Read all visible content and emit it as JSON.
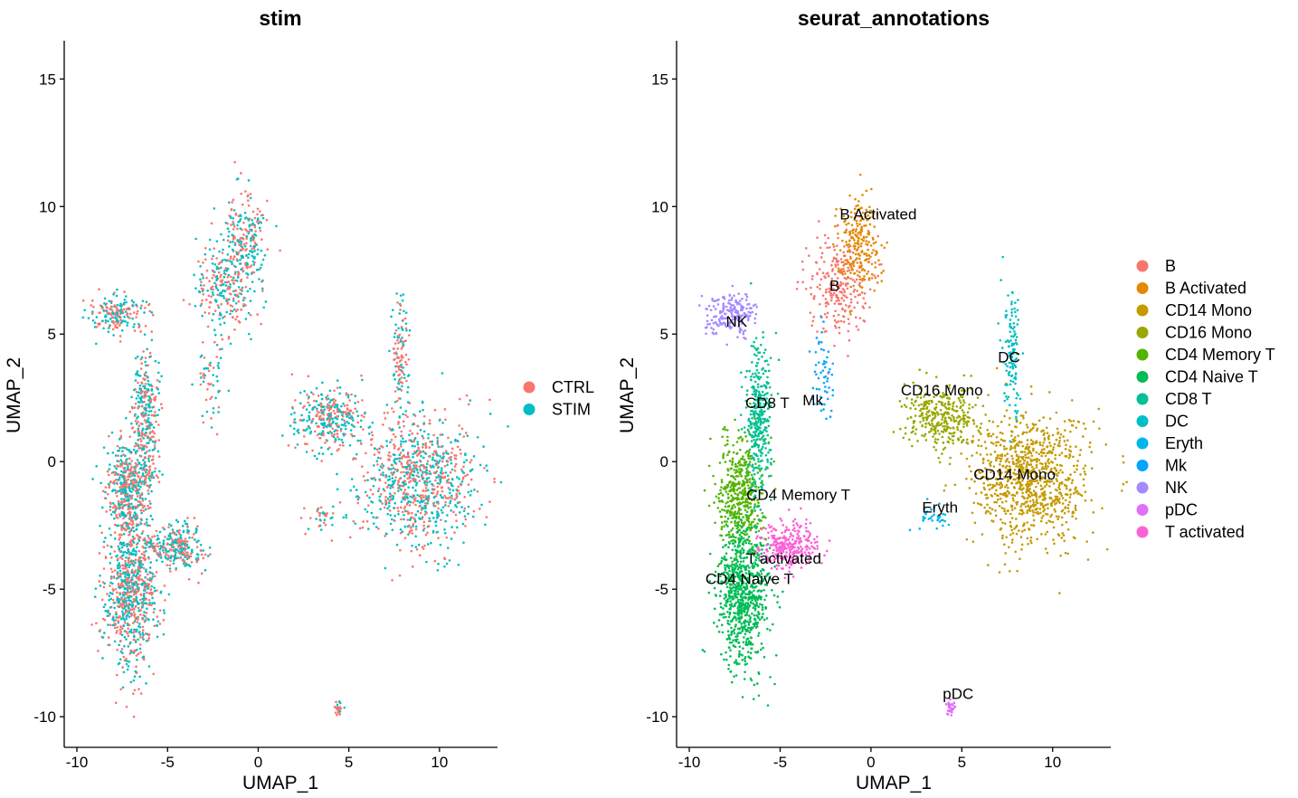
{
  "chart_data": [
    {
      "type": "scatter",
      "title": "stim",
      "xlabel": "UMAP_1",
      "ylabel": "UMAP_2",
      "xlim": [
        -10.7,
        13.2
      ],
      "ylim": [
        -11.2,
        16.5
      ],
      "xticks": [
        -10,
        -5,
        0,
        5,
        10
      ],
      "xtick_labels": [
        "-10",
        "-5",
        "0",
        "5",
        "10"
      ],
      "yticks": [
        -10,
        -5,
        0,
        5,
        10,
        15
      ],
      "ytick_labels": [
        "-10",
        "-5",
        "0",
        "5",
        "10",
        "15"
      ],
      "legend_position": "right",
      "series": [
        {
          "name": "CTRL",
          "color": "#F8766D"
        },
        {
          "name": "STIM",
          "color": "#00BFC4"
        }
      ]
    },
    {
      "type": "scatter",
      "title": "seurat_annotations",
      "xlabel": "UMAP_1",
      "ylabel": "UMAP_2",
      "xlim": [
        -10.7,
        13.2
      ],
      "ylim": [
        -11.2,
        16.5
      ],
      "xticks": [
        -10,
        -5,
        0,
        5,
        10
      ],
      "xtick_labels": [
        "-10",
        "-5",
        "0",
        "5",
        "10"
      ],
      "yticks": [
        -10,
        -5,
        0,
        5,
        10,
        15
      ],
      "ytick_labels": [
        "-10",
        "-5",
        "0",
        "5",
        "10",
        "15"
      ],
      "legend_position": "right",
      "series": [
        {
          "name": "B",
          "color": "#F8766D",
          "label_x": -2.0,
          "label_y": 6.7
        },
        {
          "name": "B Activated",
          "color": "#E38900",
          "label_x": 0.4,
          "label_y": 9.5
        },
        {
          "name": "CD14 Mono",
          "color": "#C49A00",
          "label_x": 7.9,
          "label_y": -0.7
        },
        {
          "name": "CD16 Mono",
          "color": "#99A800",
          "label_x": 3.9,
          "label_y": 2.6
        },
        {
          "name": "CD4 Memory T",
          "color": "#53B400",
          "label_x": -4.0,
          "label_y": -1.5
        },
        {
          "name": "CD4 Naive T",
          "color": "#00BC56",
          "label_x": -6.7,
          "label_y": -4.8
        },
        {
          "name": "CD8 T",
          "color": "#00C094",
          "label_x": -5.7,
          "label_y": 2.1
        },
        {
          "name": "DC",
          "color": "#00BFC4",
          "label_x": 7.6,
          "label_y": 3.9
        },
        {
          "name": "Eryth",
          "color": "#00B6EB",
          "label_x": 3.8,
          "label_y": -2.0
        },
        {
          "name": "Mk",
          "color": "#06A4FF",
          "label_x": -3.2,
          "label_y": 2.2
        },
        {
          "name": "NK",
          "color": "#A58AFF",
          "label_x": -7.4,
          "label_y": 5.3
        },
        {
          "name": "pDC",
          "color": "#DF70F8",
          "label_x": 4.8,
          "label_y": -9.3
        },
        {
          "name": "T activated",
          "color": "#FB61D7",
          "label_x": -4.8,
          "label_y": -4.0
        }
      ]
    }
  ]
}
